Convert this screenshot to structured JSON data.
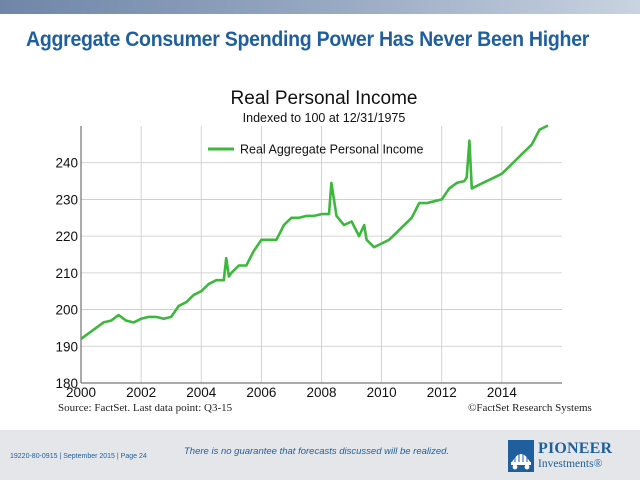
{
  "slide": {
    "title": "Aggregate Consumer Spending Power Has Never Been Higher",
    "source": "Source: FactSet. Last data point: Q3-15",
    "copyright": "©FactSet Research Systems",
    "disclaimer": "There is no guarantee that forecasts discussed will be realized.",
    "doc_ref": "19220-80-0915 | September 2015 | Page 24",
    "logo_name": "PIONEER",
    "logo_sub": "Investments®",
    "accent_color": "#1f5f9e",
    "logo_icon": "pioneer-wagon-icon"
  },
  "chart_data": {
    "type": "line",
    "title": "Real Personal Income",
    "subtitle": "Indexed to 100 at 12/31/1975",
    "xlabel": "",
    "ylabel": "",
    "xlim": [
      2000,
      2016.0
    ],
    "ylim": [
      180,
      250
    ],
    "x_ticks": [
      "2000",
      "2002",
      "2004",
      "2006",
      "2008",
      "2010",
      "2012",
      "2014"
    ],
    "y_ticks": [
      "180",
      "190",
      "200",
      "210",
      "220",
      "230",
      "240"
    ],
    "grid": true,
    "legend_position": "top-center",
    "series": [
      {
        "name": "Real Aggregate Personal Income",
        "color": "#3cb83c",
        "x": [
          2000.0,
          2000.25,
          2000.5,
          2000.75,
          2001.0,
          2001.25,
          2001.5,
          2001.75,
          2002.0,
          2002.25,
          2002.5,
          2002.75,
          2003.0,
          2003.25,
          2003.5,
          2003.75,
          2004.0,
          2004.25,
          2004.5,
          2004.75,
          2004.83,
          2004.92,
          2005.0,
          2005.25,
          2005.5,
          2005.75,
          2006.0,
          2006.25,
          2006.5,
          2006.75,
          2007.0,
          2007.25,
          2007.5,
          2007.75,
          2008.0,
          2008.25,
          2008.33,
          2008.5,
          2008.75,
          2009.0,
          2009.25,
          2009.42,
          2009.5,
          2009.75,
          2010.0,
          2010.25,
          2010.5,
          2010.75,
          2011.0,
          2011.25,
          2011.5,
          2011.75,
          2012.0,
          2012.25,
          2012.5,
          2012.75,
          2012.83,
          2012.92,
          2013.0,
          2013.25,
          2013.5,
          2013.75,
          2014.0,
          2014.25,
          2014.5,
          2014.75,
          2015.0,
          2015.25,
          2015.5
        ],
        "values": [
          192,
          193.5,
          195,
          196.5,
          197,
          198.5,
          197,
          196.5,
          197.5,
          198,
          198,
          197.5,
          198,
          201,
          202,
          204,
          205,
          207,
          208,
          208,
          214,
          209,
          210,
          212,
          212,
          216,
          219,
          219,
          219,
          223,
          225,
          225,
          225.5,
          225.5,
          226,
          226,
          234.5,
          225.5,
          223,
          224,
          220,
          223,
          219,
          217,
          218,
          219,
          221,
          223,
          225,
          229,
          229,
          229.5,
          230,
          233,
          234.5,
          235,
          236,
          246,
          233,
          234,
          235,
          236,
          237,
          239,
          241,
          243,
          245,
          249,
          250
        ]
      }
    ]
  }
}
